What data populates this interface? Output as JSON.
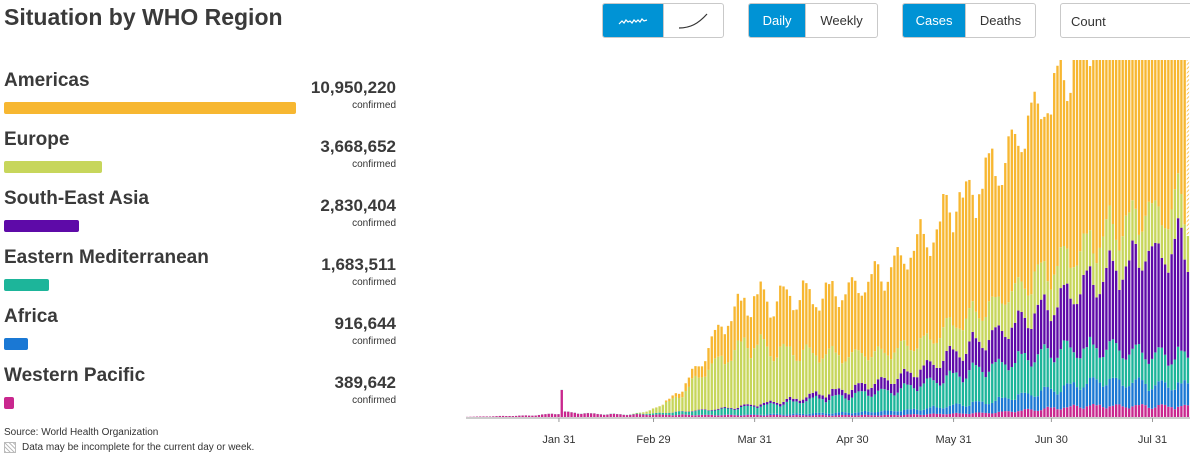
{
  "header": {
    "title": "Situation by WHO Region"
  },
  "controls": {
    "chart_style": [
      {
        "icon": "sparkline-daily-icon",
        "active": true
      },
      {
        "icon": "cumulative-curve-icon",
        "active": false
      }
    ],
    "interval": [
      {
        "label": "Daily",
        "active": true
      },
      {
        "label": "Weekly",
        "active": false
      }
    ],
    "measure": [
      {
        "label": "Cases",
        "active": true
      },
      {
        "label": "Deaths",
        "active": false
      }
    ],
    "scale_select": {
      "value": "Count"
    }
  },
  "regions": [
    {
      "name": "Americas",
      "value": "10,950,220",
      "unit": "confirmed",
      "color": "#f7b731",
      "share": 1.0
    },
    {
      "name": "Europe",
      "value": "3,668,652",
      "unit": "confirmed",
      "color": "#c7d65b",
      "share": 0.335
    },
    {
      "name": "South-East Asia",
      "value": "2,830,404",
      "unit": "confirmed",
      "color": "#5e0aa8",
      "share": 0.258
    },
    {
      "name": "Eastern Mediterranean",
      "value": "1,683,511",
      "unit": "confirmed",
      "color": "#1db59a",
      "share": 0.154
    },
    {
      "name": "Africa",
      "value": "916,644",
      "unit": "confirmed",
      "color": "#1a78d4",
      "share": 0.084
    },
    {
      "name": "Western Pacific",
      "value": "389,642",
      "unit": "confirmed",
      "color": "#c9278e",
      "share": 0.036
    }
  ],
  "footer": {
    "source": "Source: World Health Organization",
    "note": "Data may be incomplete for the current day or week."
  },
  "chart_data": {
    "type": "bar",
    "stacked": true,
    "x_tick_labels": [
      "Jan 31",
      "Feb 29",
      "Mar 31",
      "Apr 30",
      "May 31",
      "Jun 30",
      "Jul 31"
    ],
    "x_range": [
      "2020-01-03",
      "2020-08-11"
    ],
    "ylim": [
      0,
      180000
    ],
    "series": [
      {
        "name": "Western Pacific",
        "color": "#c9278e",
        "keypoints": [
          [
            0,
            100
          ],
          [
            20,
            800
          ],
          [
            28,
            2000
          ],
          [
            29,
            14000
          ],
          [
            30,
            2500
          ],
          [
            40,
            1500
          ],
          [
            60,
            1200
          ],
          [
            80,
            1000
          ],
          [
            100,
            900
          ],
          [
            130,
            1000
          ],
          [
            160,
            2200
          ],
          [
            175,
            4000
          ],
          [
            190,
            6000
          ],
          [
            221,
            5500
          ]
        ]
      },
      {
        "name": "Africa",
        "color": "#1a78d4",
        "keypoints": [
          [
            0,
            0
          ],
          [
            60,
            0
          ],
          [
            80,
            200
          ],
          [
            100,
            700
          ],
          [
            120,
            1500
          ],
          [
            140,
            3000
          ],
          [
            160,
            6000
          ],
          [
            175,
            9000
          ],
          [
            195,
            13000
          ],
          [
            210,
            12000
          ],
          [
            221,
            11000
          ]
        ]
      },
      {
        "name": "Eastern Mediterranean",
        "color": "#1db59a",
        "keypoints": [
          [
            0,
            0
          ],
          [
            50,
            100
          ],
          [
            60,
            1000
          ],
          [
            75,
            2500
          ],
          [
            90,
            4500
          ],
          [
            110,
            8000
          ],
          [
            130,
            11000
          ],
          [
            150,
            16000
          ],
          [
            165,
            19000
          ],
          [
            180,
            20000
          ],
          [
            200,
            17000
          ],
          [
            221,
            15000
          ]
        ]
      },
      {
        "name": "South-East Asia",
        "color": "#5e0aa8",
        "keypoints": [
          [
            0,
            0
          ],
          [
            60,
            0
          ],
          [
            80,
            500
          ],
          [
            100,
            1500
          ],
          [
            120,
            4000
          ],
          [
            140,
            8000
          ],
          [
            150,
            12000
          ],
          [
            165,
            18000
          ],
          [
            180,
            26000
          ],
          [
            195,
            38000
          ],
          [
            210,
            55000
          ],
          [
            221,
            60000
          ]
        ]
      },
      {
        "name": "Europe",
        "color": "#c7d65b",
        "keypoints": [
          [
            0,
            0
          ],
          [
            50,
            0
          ],
          [
            55,
            1000
          ],
          [
            65,
            8000
          ],
          [
            75,
            24000
          ],
          [
            85,
            33000
          ],
          [
            95,
            28000
          ],
          [
            110,
            20000
          ],
          [
            125,
            16000
          ],
          [
            140,
            14000
          ],
          [
            155,
            16000
          ],
          [
            170,
            18000
          ],
          [
            185,
            20000
          ],
          [
            200,
            22000
          ],
          [
            221,
            22000
          ]
        ]
      },
      {
        "name": "Americas",
        "color": "#f7b731",
        "keypoints": [
          [
            0,
            0
          ],
          [
            55,
            0
          ],
          [
            60,
            200
          ],
          [
            70,
            5000
          ],
          [
            80,
            20000
          ],
          [
            95,
            28000
          ],
          [
            110,
            32000
          ],
          [
            125,
            40000
          ],
          [
            140,
            55000
          ],
          [
            150,
            62000
          ],
          [
            165,
            75000
          ],
          [
            180,
            95000
          ],
          [
            190,
            110000
          ],
          [
            200,
            115000
          ],
          [
            210,
            105000
          ],
          [
            221,
            95000
          ]
        ]
      }
    ]
  }
}
